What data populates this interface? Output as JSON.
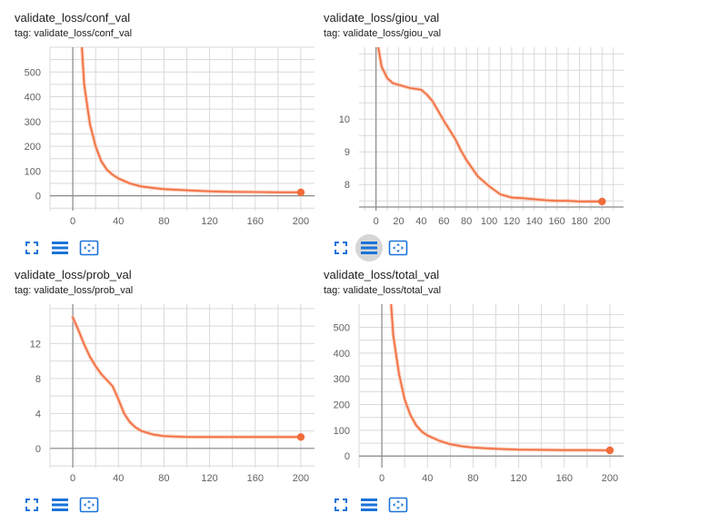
{
  "theme": {
    "line": "#f26b3a",
    "halo": "#f7b49a",
    "grid": "#d9d9d9",
    "axis": "#8a8a8a",
    "icon": "#1a73d9"
  },
  "toolbar": {
    "icons": [
      "fit-domain-icon",
      "data-table-icon",
      "expand-view-icon"
    ]
  },
  "cards": [
    {
      "title": "validate_loss/conf_val",
      "tag": "tag: validate_loss/conf_val",
      "active_button": -1
    },
    {
      "title": "validate_loss/giou_val",
      "tag": "tag: validate_loss/giou_val",
      "active_button": 1
    },
    {
      "title": "validate_loss/prob_val",
      "tag": "tag: validate_loss/prob_val",
      "active_button": -1
    },
    {
      "title": "validate_loss/total_val",
      "tag": "tag: validate_loss/total_val",
      "active_button": -1
    }
  ],
  "chart_data": [
    {
      "type": "line",
      "title": "validate_loss/conf_val",
      "xlim": [
        -20,
        212
      ],
      "ylim": [
        -60,
        600
      ],
      "xticks": [
        0,
        40,
        80,
        120,
        160,
        200
      ],
      "yticks": [
        0,
        100,
        200,
        300,
        400,
        500
      ],
      "grid": true,
      "series": [
        {
          "x": [
            8,
            10,
            15,
            20,
            25,
            30,
            35,
            40,
            50,
            60,
            70,
            80,
            100,
            120,
            140,
            160,
            180,
            200
          ],
          "y": [
            600,
            450,
            290,
            200,
            140,
            105,
            85,
            70,
            50,
            38,
            32,
            27,
            22,
            18,
            16,
            15,
            14,
            14
          ]
        }
      ]
    },
    {
      "type": "line",
      "title": "validate_loss/giou_val",
      "xlim": [
        -15,
        219
      ],
      "ylim": [
        7.2,
        12.2
      ],
      "xticks": [
        0,
        20,
        40,
        60,
        80,
        100,
        120,
        140,
        160,
        180,
        200
      ],
      "yticks": [
        8,
        9,
        10
      ],
      "grid": true,
      "series": [
        {
          "x": [
            2,
            5,
            10,
            15,
            20,
            30,
            40,
            45,
            50,
            55,
            60,
            70,
            75,
            80,
            90,
            100,
            110,
            120,
            130,
            140,
            150,
            160,
            170,
            180,
            190,
            200
          ],
          "y": [
            12.2,
            11.6,
            11.25,
            11.1,
            11.05,
            10.95,
            10.9,
            10.75,
            10.55,
            10.25,
            9.95,
            9.4,
            9.05,
            8.75,
            8.25,
            7.95,
            7.7,
            7.6,
            7.58,
            7.55,
            7.52,
            7.5,
            7.5,
            7.48,
            7.48,
            7.48
          ]
        }
      ]
    },
    {
      "type": "line",
      "title": "validate_loss/prob_val",
      "xlim": [
        -20,
        212
      ],
      "ylim": [
        -2.2,
        16.5
      ],
      "xticks": [
        0,
        40,
        80,
        120,
        160,
        200
      ],
      "yticks": [
        0,
        4,
        8,
        12
      ],
      "grid": true,
      "series": [
        {
          "x": [
            0,
            5,
            10,
            15,
            20,
            25,
            30,
            35,
            40,
            45,
            50,
            55,
            60,
            70,
            80,
            90,
            100,
            120,
            140,
            160,
            180,
            200
          ],
          "y": [
            15,
            13.5,
            11.9,
            10.5,
            9.4,
            8.5,
            7.8,
            7.1,
            5.6,
            4.0,
            3.0,
            2.4,
            2.0,
            1.6,
            1.4,
            1.35,
            1.3,
            1.3,
            1.3,
            1.3,
            1.3,
            1.3
          ]
        }
      ]
    },
    {
      "type": "line",
      "title": "validate_loss/total_val",
      "xlim": [
        -20,
        212
      ],
      "ylim": [
        -45,
        590
      ],
      "xticks": [
        0,
        40,
        80,
        120,
        160,
        200
      ],
      "yticks": [
        0,
        100,
        200,
        300,
        400,
        500
      ],
      "grid": true,
      "series": [
        {
          "x": [
            8,
            10,
            15,
            20,
            25,
            30,
            35,
            40,
            50,
            60,
            70,
            80,
            100,
            120,
            140,
            160,
            180,
            200
          ],
          "y": [
            600,
            470,
            320,
            220,
            160,
            120,
            95,
            80,
            60,
            46,
            38,
            33,
            28,
            25,
            24,
            23,
            23,
            22
          ]
        }
      ]
    }
  ]
}
